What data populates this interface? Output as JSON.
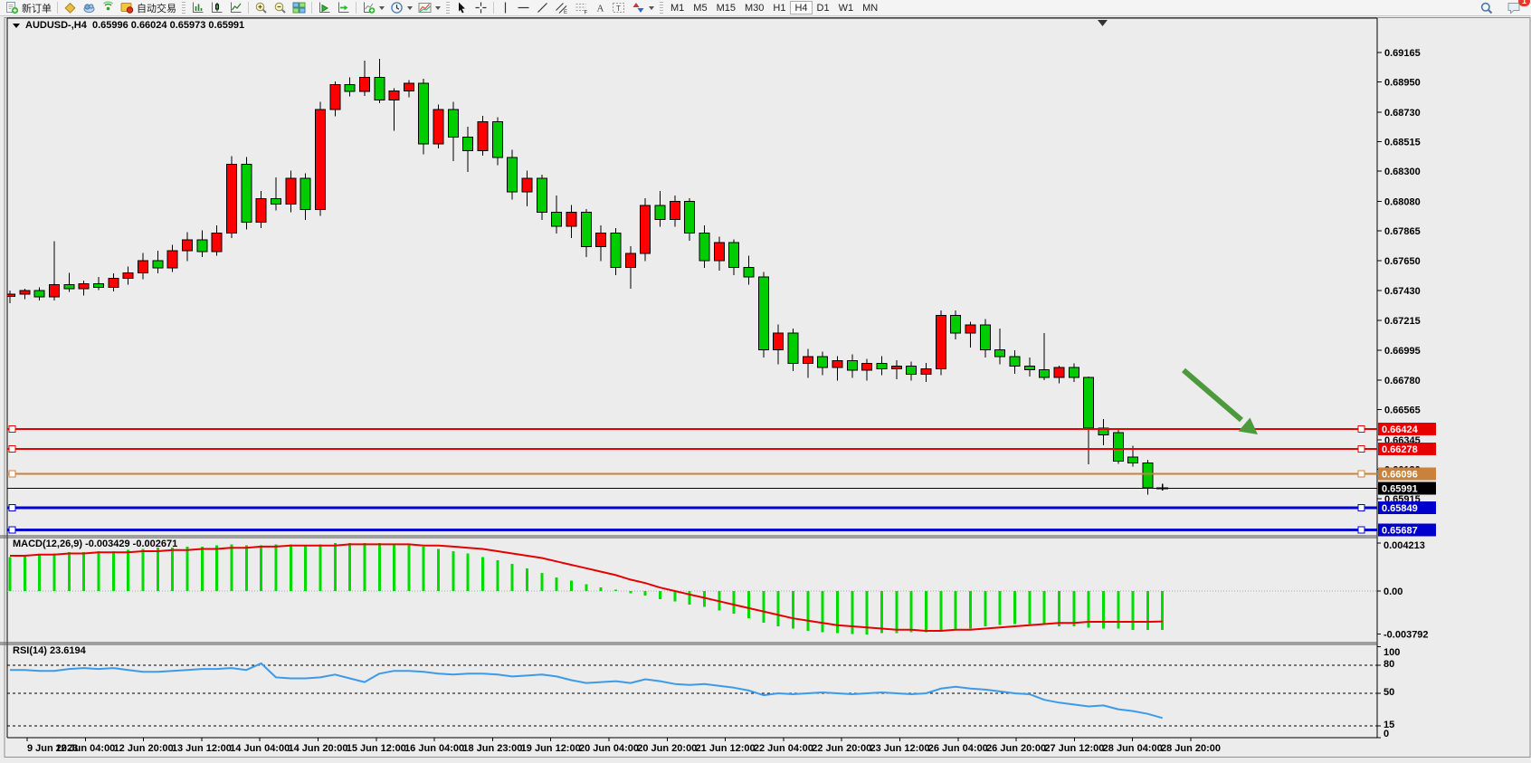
{
  "toolbar": {
    "new_order_label": "新订单",
    "auto_trading_label": "自动交易",
    "timeframes": [
      "M1",
      "M5",
      "M15",
      "M30",
      "H1",
      "H4",
      "D1",
      "W1",
      "MN"
    ],
    "active_timeframe": "H4",
    "notification_count": "1"
  },
  "chart": {
    "symbol_period": "AUDUSD-,H4",
    "ohlc_text": "0.65996 0.66024 0.65973 0.65991"
  },
  "chart_data": {
    "type": "candlestick",
    "symbol": "AUDUSD-",
    "timeframe": "H4",
    "current_bar": {
      "open": 0.65996,
      "high": 0.66024,
      "low": 0.65973,
      "close": 0.65991
    },
    "price_ylim": [
      0.6565,
      0.6942
    ],
    "price_axis_ticks": [
      "0.69165",
      "0.68950",
      "0.68730",
      "0.68515",
      "0.68300",
      "0.68080",
      "0.67865",
      "0.67650",
      "0.67430",
      "0.67215",
      "0.66995",
      "0.66780",
      "0.66565",
      "0.66345",
      "0.66130",
      "0.65915"
    ],
    "levels": [
      {
        "label": "0.66424",
        "price": 0.66424,
        "color": "#e60000",
        "width": 2,
        "handles": true
      },
      {
        "label": "0.66278",
        "price": 0.66278,
        "color": "#e60000",
        "width": 2,
        "handles": true
      },
      {
        "label": "0.66096",
        "price": 0.66096,
        "color": "#c8823c",
        "width": 2,
        "handles": true
      },
      {
        "label": "0.65991",
        "price": 0.65991,
        "color": "#000000",
        "width": 1,
        "handles": false
      },
      {
        "label": "0.65849",
        "price": 0.65849,
        "color": "#0000cd",
        "width": 3,
        "handles": true
      },
      {
        "label": "0.65687",
        "price": 0.65687,
        "color": "#0000cd",
        "width": 3,
        "handles": true
      }
    ],
    "candles": [
      [
        0.6739,
        0.6743,
        0.6734,
        0.67405
      ],
      [
        0.67405,
        0.67445,
        0.6737,
        0.6743
      ],
      [
        0.6743,
        0.67455,
        0.6736,
        0.67385
      ],
      [
        0.67385,
        0.6779,
        0.6736,
        0.67475
      ],
      [
        0.67475,
        0.6756,
        0.6742,
        0.67445
      ],
      [
        0.67445,
        0.67505,
        0.67395,
        0.6748
      ],
      [
        0.6748,
        0.6753,
        0.67435,
        0.67455
      ],
      [
        0.67455,
        0.67555,
        0.67425,
        0.6752
      ],
      [
        0.6752,
        0.67605,
        0.67475,
        0.6756
      ],
      [
        0.6756,
        0.67705,
        0.67515,
        0.6765
      ],
      [
        0.6765,
        0.6772,
        0.67555,
        0.67595
      ],
      [
        0.67595,
        0.67765,
        0.67565,
        0.6772
      ],
      [
        0.6772,
        0.67855,
        0.67645,
        0.678
      ],
      [
        0.678,
        0.6787,
        0.67675,
        0.67715
      ],
      [
        0.67715,
        0.67905,
        0.67685,
        0.6785
      ],
      [
        0.6785,
        0.6841,
        0.67815,
        0.6835
      ],
      [
        0.6835,
        0.68405,
        0.67875,
        0.6793
      ],
      [
        0.6793,
        0.68155,
        0.67885,
        0.681
      ],
      [
        0.681,
        0.68255,
        0.68015,
        0.6806
      ],
      [
        0.6806,
        0.68305,
        0.68,
        0.6825
      ],
      [
        0.6825,
        0.68285,
        0.67945,
        0.6802
      ],
      [
        0.6802,
        0.68805,
        0.67975,
        0.6875
      ],
      [
        0.6875,
        0.68955,
        0.687,
        0.6893
      ],
      [
        0.6893,
        0.68985,
        0.68845,
        0.6888
      ],
      [
        0.6888,
        0.69105,
        0.6885,
        0.68985
      ],
      [
        0.68985,
        0.6912,
        0.68795,
        0.6882
      ],
      [
        0.6882,
        0.68905,
        0.68595,
        0.68885
      ],
      [
        0.68885,
        0.68965,
        0.6884,
        0.6894
      ],
      [
        0.6894,
        0.68975,
        0.68425,
        0.685
      ],
      [
        0.685,
        0.68785,
        0.68465,
        0.6875
      ],
      [
        0.6875,
        0.68805,
        0.68375,
        0.6855
      ],
      [
        0.6855,
        0.68625,
        0.68295,
        0.6845
      ],
      [
        0.6845,
        0.68705,
        0.68415,
        0.6866
      ],
      [
        0.6866,
        0.68695,
        0.68345,
        0.684
      ],
      [
        0.684,
        0.68455,
        0.68095,
        0.6815
      ],
      [
        0.6815,
        0.68305,
        0.68045,
        0.6825
      ],
      [
        0.6825,
        0.68275,
        0.67945,
        0.68
      ],
      [
        0.68,
        0.68125,
        0.67845,
        0.679
      ],
      [
        0.679,
        0.68055,
        0.67815,
        0.68
      ],
      [
        0.68,
        0.68025,
        0.67675,
        0.6775
      ],
      [
        0.6775,
        0.67905,
        0.67645,
        0.6785
      ],
      [
        0.6785,
        0.67885,
        0.67545,
        0.676
      ],
      [
        0.676,
        0.67755,
        0.67445,
        0.677
      ],
      [
        0.677,
        0.68105,
        0.67645,
        0.6805
      ],
      [
        0.6805,
        0.68155,
        0.67895,
        0.6795
      ],
      [
        0.6795,
        0.68125,
        0.67895,
        0.6808
      ],
      [
        0.6808,
        0.68105,
        0.67795,
        0.6785
      ],
      [
        0.6785,
        0.67905,
        0.67595,
        0.6765
      ],
      [
        0.6765,
        0.67825,
        0.67575,
        0.6778
      ],
      [
        0.6778,
        0.67805,
        0.67545,
        0.676
      ],
      [
        0.676,
        0.67685,
        0.67475,
        0.6753
      ],
      [
        0.6753,
        0.67565,
        0.66945,
        0.67
      ],
      [
        0.67,
        0.67185,
        0.66895,
        0.6712
      ],
      [
        0.6712,
        0.67155,
        0.66845,
        0.669
      ],
      [
        0.669,
        0.67005,
        0.66795,
        0.6695
      ],
      [
        0.6695,
        0.66985,
        0.66815,
        0.6687
      ],
      [
        0.6687,
        0.66955,
        0.66775,
        0.6692
      ],
      [
        0.6692,
        0.66965,
        0.66795,
        0.6685
      ],
      [
        0.6685,
        0.66935,
        0.66775,
        0.669
      ],
      [
        0.669,
        0.66955,
        0.66815,
        0.6686
      ],
      [
        0.6686,
        0.66925,
        0.66785,
        0.6688
      ],
      [
        0.6688,
        0.66915,
        0.66775,
        0.6682
      ],
      [
        0.6682,
        0.66905,
        0.66765,
        0.6686
      ],
      [
        0.6686,
        0.67285,
        0.66815,
        0.6725
      ],
      [
        0.6725,
        0.67285,
        0.67075,
        0.6712
      ],
      [
        0.6712,
        0.67205,
        0.67015,
        0.6718
      ],
      [
        0.6718,
        0.67225,
        0.66945,
        0.67
      ],
      [
        0.67,
        0.67155,
        0.66895,
        0.6695
      ],
      [
        0.6695,
        0.66995,
        0.66825,
        0.6688
      ],
      [
        0.6688,
        0.66945,
        0.66805,
        0.66855
      ],
      [
        0.66855,
        0.6712,
        0.6678,
        0.668
      ],
      [
        0.668,
        0.66885,
        0.66755,
        0.6687
      ],
      [
        0.6687,
        0.669,
        0.66765,
        0.66798
      ],
      [
        0.66798,
        0.66805,
        0.66165,
        0.6643
      ],
      [
        0.6643,
        0.66495,
        0.66305,
        0.6638
      ],
      [
        0.66398,
        0.6642,
        0.6617,
        0.6619
      ],
      [
        0.6622,
        0.663,
        0.6615,
        0.66175
      ],
      [
        0.66175,
        0.662,
        0.65945,
        0.65995
      ],
      [
        0.65996,
        0.66024,
        0.65973,
        0.65991
      ]
    ],
    "macd": {
      "label": "MACD(12,26,9)",
      "value_text": "-0.003429",
      "signal_text": "-0.002671",
      "axis_labels": [
        "0.004213",
        "0.00",
        "-0.003792"
      ],
      "axis_values": [
        0.004213,
        0,
        -0.003792
      ],
      "histogram": [
        0.003,
        0.0031,
        0.0032,
        0.0033,
        0.0034,
        0.0034,
        0.0035,
        0.0035,
        0.0036,
        0.0037,
        0.0038,
        0.0038,
        0.0039,
        0.0039,
        0.004,
        0.0041,
        0.004,
        0.004,
        0.0041,
        0.0041,
        0.004,
        0.0041,
        0.0042,
        0.004213,
        0.0042,
        0.0042,
        0.0041,
        0.004,
        0.0039,
        0.0037,
        0.0035,
        0.0033,
        0.003,
        0.0027,
        0.0024,
        0.002,
        0.0016,
        0.0012,
        0.0009,
        0.0006,
        0.0003,
        0.0001,
        -0.0002,
        -0.0004,
        -0.0007,
        -0.0009,
        -0.0012,
        -0.0014,
        -0.0017,
        -0.002,
        -0.0024,
        -0.0028,
        -0.0031,
        -0.0033,
        -0.0035,
        -0.0036,
        -0.0037,
        -0.003792,
        -0.0038,
        -0.0037,
        -0.0037,
        -0.0036,
        -0.0036,
        -0.0035,
        -0.0034,
        -0.0033,
        -0.0031,
        -0.003,
        -0.0029,
        -0.0029,
        -0.003,
        -0.0031,
        -0.0031,
        -0.0032,
        -0.0033,
        -0.0033,
        -0.0034,
        -0.0034,
        -0.003429
      ],
      "signal": [
        0.0031,
        0.0031,
        0.0032,
        0.0032,
        0.0033,
        0.0033,
        0.0034,
        0.0034,
        0.0034,
        0.0035,
        0.0035,
        0.0036,
        0.0036,
        0.0037,
        0.0037,
        0.0038,
        0.0038,
        0.0039,
        0.0039,
        0.004,
        0.004,
        0.004,
        0.004,
        0.0041,
        0.0041,
        0.0041,
        0.0041,
        0.0041,
        0.004,
        0.004,
        0.0039,
        0.0038,
        0.0037,
        0.0035,
        0.0033,
        0.0031,
        0.0029,
        0.0026,
        0.0023,
        0.002,
        0.0017,
        0.0014,
        0.001,
        0.0007,
        0.0003,
        0.0,
        -0.0003,
        -0.0006,
        -0.0009,
        -0.0012,
        -0.0015,
        -0.0018,
        -0.0021,
        -0.0024,
        -0.0026,
        -0.0028,
        -0.003,
        -0.0031,
        -0.0032,
        -0.0033,
        -0.0034,
        -0.0034,
        -0.0035,
        -0.0035,
        -0.0034,
        -0.0034,
        -0.0033,
        -0.0032,
        -0.0031,
        -0.003,
        -0.0029,
        -0.0028,
        -0.0028,
        -0.0027,
        -0.0027,
        -0.0027,
        -0.0027,
        -0.0027,
        -0.002671
      ]
    },
    "rsi": {
      "label": "RSI(14)",
      "value_text": "23.6194",
      "axis_labels": [
        "100",
        "80",
        "50",
        "15",
        "0"
      ],
      "axis_values": [
        100,
        80,
        50,
        15,
        0
      ],
      "dashed_levels": [
        80,
        50,
        15
      ],
      "series": [
        75,
        75,
        74,
        74,
        76,
        77,
        76,
        77,
        75,
        73,
        73,
        74,
        75,
        76,
        76,
        77,
        75,
        82,
        67,
        66,
        66,
        67,
        70,
        66,
        62,
        71,
        74,
        74,
        73,
        71,
        70,
        71,
        71,
        70,
        68,
        69,
        70,
        68,
        64,
        61,
        62,
        63,
        61,
        65,
        63,
        60,
        59,
        60,
        58,
        56,
        53,
        48,
        50,
        49,
        50,
        51,
        50,
        49,
        50,
        51,
        50,
        49,
        50,
        55,
        57,
        55,
        54,
        52,
        50,
        49,
        43,
        40,
        38,
        36,
        37,
        33,
        31,
        28,
        23.6194
      ]
    },
    "time_labels": [
      "9 Jun 2023",
      "12 Jun 04:00",
      "12 Jun 20:00",
      "13 Jun 12:00",
      "14 Jun 04:00",
      "14 Jun 20:00",
      "15 Jun 12:00",
      "16 Jun 04:00",
      "18 Jun 23:00",
      "19 Jun 12:00",
      "20 Jun 04:00",
      "20 Jun 20:00",
      "21 Jun 12:00",
      "22 Jun 04:00",
      "22 Jun 20:00",
      "23 Jun 12:00",
      "26 Jun 04:00",
      "26 Jun 20:00",
      "27 Jun 12:00",
      "28 Jun 04:00",
      "28 Jun 20:00"
    ],
    "colors": {
      "bull_candle": "#ff0000",
      "bear_candle": "#00cd00",
      "wick": "#000000",
      "macd_histogram": "#00dc00",
      "macd_signal": "#e60000",
      "rsi_line": "#3c9be9",
      "annotation_arrow": "#4d9a3c"
    }
  }
}
